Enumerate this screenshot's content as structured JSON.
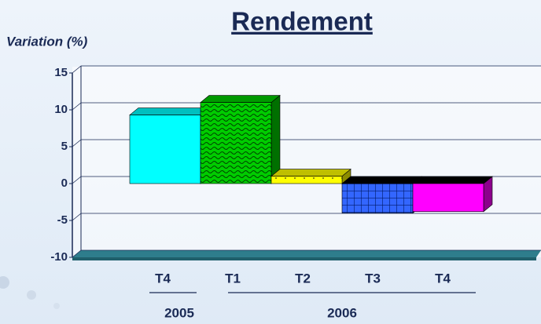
{
  "chart_data": {
    "type": "bar3d",
    "title": "Rendement",
    "y_label": "Variation (%)",
    "categories": [
      "T4",
      "T1",
      "T2",
      "T3",
      "T4"
    ],
    "group_labels": [
      "2005",
      "2006"
    ],
    "values": [
      9.3,
      11,
      1,
      -4,
      -3.8
    ],
    "colors": [
      "#00ffff",
      "#00cc00",
      "#ffff00",
      "#3366ff",
      "#ff00ff"
    ],
    "patterns": [
      "solid",
      "wave",
      "dots",
      "grid",
      "solid"
    ],
    "ylim": [
      -10,
      15
    ],
    "yticks": [
      15,
      10,
      5,
      0,
      -5,
      -10
    ],
    "grid": true
  }
}
